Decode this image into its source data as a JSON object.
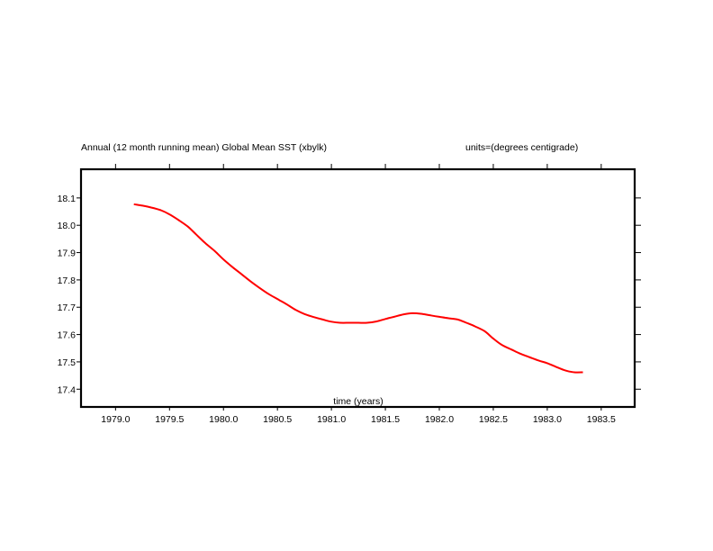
{
  "chart_data": {
    "type": "line",
    "title": "Annual (12 month running mean) Global Mean SST (xbylk)",
    "units_label": "units=(degrees centigrade)",
    "xlabel": "time (years)",
    "ylabel": "",
    "xlim": [
      1978.68,
      1983.81
    ],
    "ylim": [
      17.335,
      18.205
    ],
    "grid": false,
    "x_ticks": [
      1979.0,
      1979.5,
      1980.0,
      1980.5,
      1981.0,
      1981.5,
      1982.0,
      1982.5,
      1983.0,
      1983.5
    ],
    "x_tick_labels": [
      "1979.0",
      "1979.5",
      "1980.0",
      "1980.5",
      "1981.0",
      "1981.5",
      "1982.0",
      "1982.5",
      "1983.0",
      "1983.5"
    ],
    "y_ticks": [
      17.4,
      17.5,
      17.6,
      17.7,
      17.8,
      17.9,
      18.0,
      18.1
    ],
    "y_tick_labels": [
      "17.4",
      "17.5",
      "17.6",
      "17.7",
      "17.8",
      "17.9",
      "18.0",
      "18.1"
    ],
    "series": [
      {
        "name": "Global Mean SST",
        "color": "#ff0000",
        "x": [
          1979.17,
          1979.25,
          1979.33,
          1979.42,
          1979.5,
          1979.58,
          1979.67,
          1979.75,
          1979.83,
          1979.92,
          1980.0,
          1980.08,
          1980.17,
          1980.25,
          1980.33,
          1980.42,
          1980.5,
          1980.58,
          1980.67,
          1980.75,
          1980.83,
          1980.92,
          1981.0,
          1981.08,
          1981.17,
          1981.25,
          1981.33,
          1981.42,
          1981.5,
          1981.58,
          1981.67,
          1981.75,
          1981.83,
          1981.92,
          1982.0,
          1982.08,
          1982.17,
          1982.25,
          1982.33,
          1982.42,
          1982.5,
          1982.58,
          1982.67,
          1982.75,
          1982.83,
          1982.92,
          1983.0,
          1983.08,
          1983.17,
          1983.25,
          1983.33
        ],
        "values": [
          18.077,
          18.072,
          18.065,
          18.055,
          18.04,
          18.02,
          17.995,
          17.965,
          17.935,
          17.905,
          17.875,
          17.848,
          17.82,
          17.795,
          17.772,
          17.748,
          17.73,
          17.712,
          17.69,
          17.675,
          17.665,
          17.655,
          17.647,
          17.643,
          17.643,
          17.643,
          17.643,
          17.648,
          17.657,
          17.665,
          17.674,
          17.678,
          17.676,
          17.67,
          17.665,
          17.66,
          17.655,
          17.643,
          17.63,
          17.612,
          17.585,
          17.562,
          17.545,
          17.53,
          17.518,
          17.505,
          17.495,
          17.482,
          17.468,
          17.462,
          17.462
        ]
      }
    ]
  }
}
